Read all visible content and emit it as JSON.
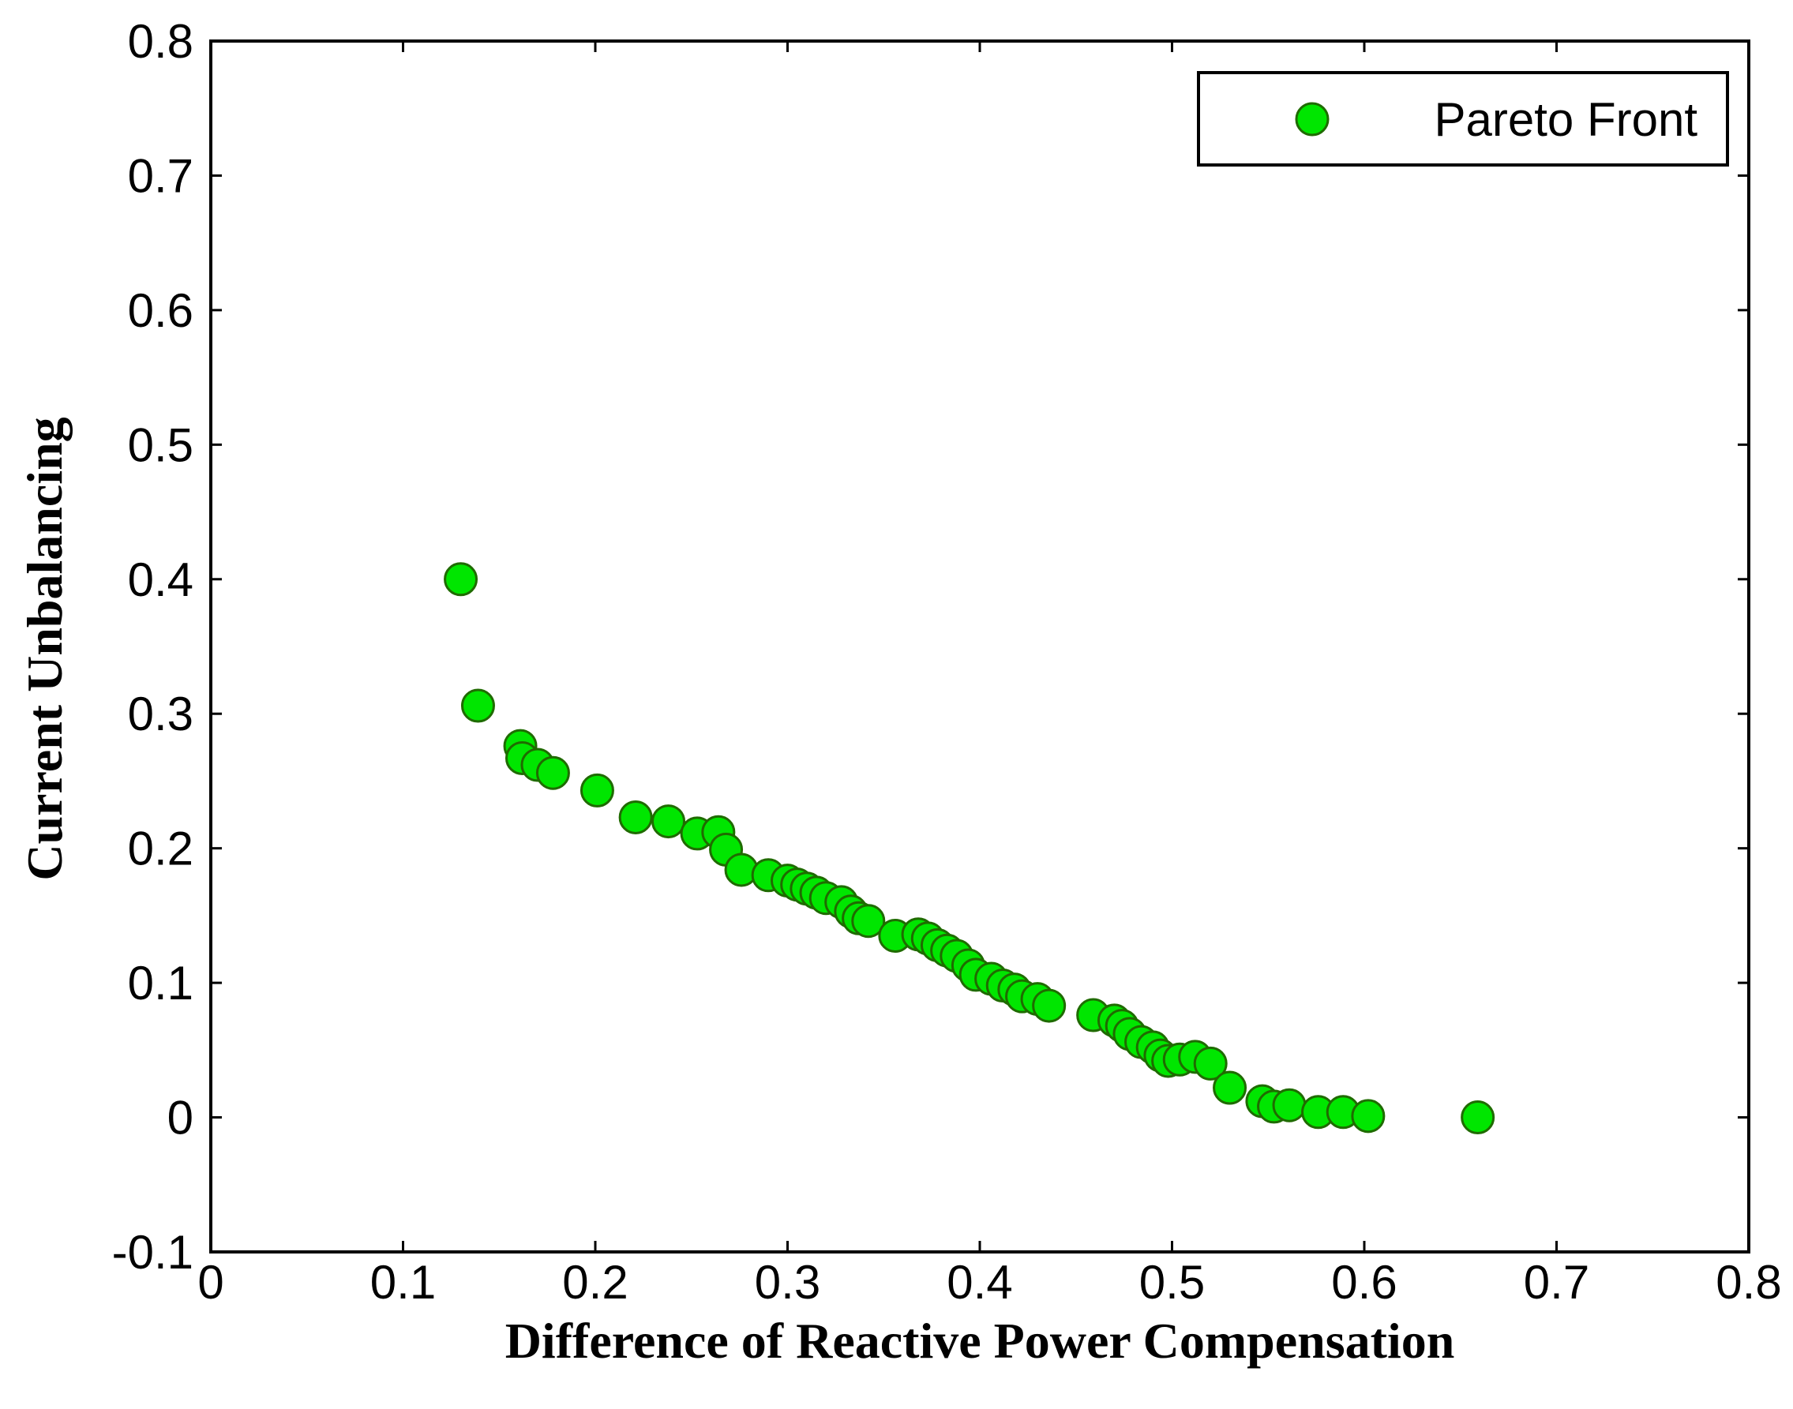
{
  "chart_data": {
    "type": "scatter",
    "title": "",
    "xlabel": "Difference of Reactive Power Compensation",
    "ylabel": "Current Unbalancing",
    "xlim": [
      0,
      0.8
    ],
    "ylim": [
      -0.1,
      0.8
    ],
    "xticks": [
      0,
      0.1,
      0.2,
      0.3,
      0.4,
      0.5,
      0.6,
      0.7,
      0.8
    ],
    "xtick_labels": [
      "0",
      "0.1",
      "0.2",
      "0.3",
      "0.4",
      "0.5",
      "0.6",
      "0.7",
      "0.8"
    ],
    "yticks": [
      -0.1,
      0,
      0.1,
      0.2,
      0.3,
      0.4,
      0.5,
      0.6,
      0.7,
      0.8
    ],
    "ytick_labels": [
      "-0.1",
      "0",
      "0.1",
      "0.2",
      "0.3",
      "0.4",
      "0.5",
      "0.6",
      "0.7",
      "0.8"
    ],
    "grid": false,
    "legend": {
      "position": "top-right",
      "entries": [
        "Pareto Front"
      ]
    },
    "series": [
      {
        "name": "Pareto Front",
        "marker": "circle",
        "color": "#00e600",
        "edge_color": "#1f6b00",
        "points": [
          [
            0.13,
            0.4
          ],
          [
            0.139,
            0.306
          ],
          [
            0.161,
            0.276
          ],
          [
            0.162,
            0.267
          ],
          [
            0.17,
            0.262
          ],
          [
            0.178,
            0.256
          ],
          [
            0.201,
            0.243
          ],
          [
            0.221,
            0.223
          ],
          [
            0.238,
            0.22
          ],
          [
            0.253,
            0.211
          ],
          [
            0.264,
            0.212
          ],
          [
            0.268,
            0.199
          ],
          [
            0.276,
            0.184
          ],
          [
            0.29,
            0.18
          ],
          [
            0.3,
            0.176
          ],
          [
            0.305,
            0.173
          ],
          [
            0.31,
            0.17
          ],
          [
            0.315,
            0.167
          ],
          [
            0.32,
            0.163
          ],
          [
            0.328,
            0.16
          ],
          [
            0.333,
            0.153
          ],
          [
            0.337,
            0.148
          ],
          [
            0.342,
            0.146
          ],
          [
            0.356,
            0.135
          ],
          [
            0.368,
            0.136
          ],
          [
            0.373,
            0.133
          ],
          [
            0.378,
            0.128
          ],
          [
            0.383,
            0.124
          ],
          [
            0.388,
            0.12
          ],
          [
            0.394,
            0.113
          ],
          [
            0.398,
            0.106
          ],
          [
            0.406,
            0.103
          ],
          [
            0.412,
            0.098
          ],
          [
            0.418,
            0.095
          ],
          [
            0.422,
            0.09
          ],
          [
            0.43,
            0.088
          ],
          [
            0.436,
            0.083
          ],
          [
            0.459,
            0.076
          ],
          [
            0.47,
            0.072
          ],
          [
            0.474,
            0.068
          ],
          [
            0.478,
            0.062
          ],
          [
            0.484,
            0.056
          ],
          [
            0.49,
            0.052
          ],
          [
            0.494,
            0.046
          ],
          [
            0.498,
            0.042
          ],
          [
            0.504,
            0.043
          ],
          [
            0.512,
            0.045
          ],
          [
            0.52,
            0.04
          ],
          [
            0.53,
            0.022
          ],
          [
            0.547,
            0.012
          ],
          [
            0.553,
            0.008
          ],
          [
            0.561,
            0.009
          ],
          [
            0.576,
            0.004
          ],
          [
            0.589,
            0.004
          ],
          [
            0.602,
            0.001
          ],
          [
            0.659,
            0.0
          ]
        ]
      }
    ]
  }
}
